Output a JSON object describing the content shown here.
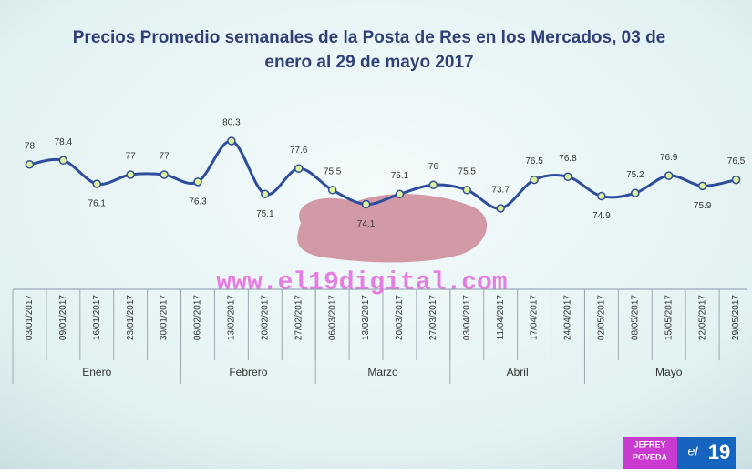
{
  "chart_data": {
    "type": "line",
    "title_lines": [
      "Precios Promedio semanales de la Posta de Res en los Mercados, 03 de",
      "enero al 29 de mayo 2017"
    ],
    "categories": [
      "03/01/2017",
      "09/01/2017",
      "16/01/2017",
      "23/01/2017",
      "30/01/2017",
      "06/02/2017",
      "13/02/2017",
      "20/02/2017",
      "27/02/2017",
      "06/03/2017",
      "13/03/2017",
      "20/03/2017",
      "27/03/2017",
      "03/04/2017",
      "11/04/2017",
      "17/04/2017",
      "24/04/2017",
      "02/05/2017",
      "08/05/2017",
      "15/05/2017",
      "22/05/2017",
      "29/05/2017"
    ],
    "values": [
      78,
      78.4,
      76.1,
      77,
      77,
      76.3,
      80.3,
      75.1,
      77.6,
      75.5,
      74.1,
      75.1,
      76,
      75.5,
      73.7,
      76.5,
      76.8,
      74.9,
      75.2,
      76.9,
      75.9,
      76.5
    ],
    "color": "#2e4d9c",
    "groups": [
      {
        "label": "Enero",
        "count": 5
      },
      {
        "label": "Febrero",
        "count": 4
      },
      {
        "label": "Marzo",
        "count": 4
      },
      {
        "label": "Abril",
        "count": 4
      },
      {
        "label": "Mayo",
        "count": 5
      }
    ]
  },
  "watermark": "www.el19digital.com",
  "credit": {
    "first": "JEFREY",
    "last": "POVEDA"
  },
  "logo": {
    "prefix": "el",
    "number": "19"
  }
}
